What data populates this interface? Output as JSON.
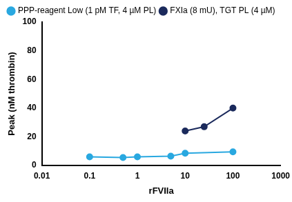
{
  "chart_data": {
    "type": "line",
    "x_label": "rFVIIa",
    "y_label": "Peak (nM thrombin)",
    "log": "x",
    "grid": false,
    "legend": "upper left",
    "marker": "circle",
    "xlim": [
      0.01,
      1000
    ],
    "xticks": [
      0.01,
      0.1,
      1,
      10,
      100,
      1000
    ],
    "ylim": [
      0,
      100
    ],
    "yticks": [
      0,
      20,
      40,
      60,
      80,
      100
    ],
    "series": [
      {
        "name": "PPP-reagent Low (1 pM TF, 4 µM PL)",
        "color": "#29a8e0",
        "x": [
          0.1,
          0.5,
          1,
          5,
          10,
          100
        ],
        "values": [
          6,
          5.5,
          6,
          6.5,
          8.5,
          9.5
        ]
      },
      {
        "name": "FXIa (8 mU), TGT PL (4 µM)",
        "color": "#1b2a5c",
        "x": [
          10,
          25,
          100
        ],
        "values": [
          24,
          27,
          40
        ]
      }
    ]
  }
}
